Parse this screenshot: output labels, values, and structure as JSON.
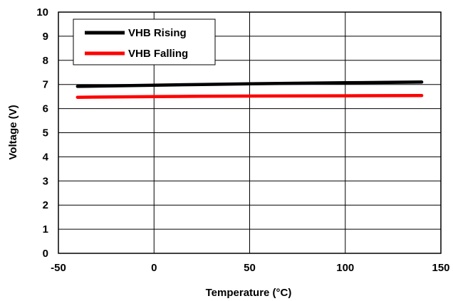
{
  "chart_data": {
    "type": "line",
    "xlabel": "Temperature (°C)",
    "ylabel": "Voltage (V)",
    "xlim": [
      -50,
      150
    ],
    "ylim": [
      0,
      10
    ],
    "x_ticks": [
      "-50",
      "0",
      "50",
      "100",
      "150"
    ],
    "y_ticks": [
      "0",
      "1",
      "2",
      "3",
      "4",
      "5",
      "6",
      "7",
      "8",
      "9",
      "10"
    ],
    "grid": true,
    "legend_position": "top-left",
    "series": [
      {
        "name": "VHB Rising",
        "color": "#000000",
        "x": [
          -40,
          0,
          25,
          50,
          100,
          140
        ],
        "y": [
          6.92,
          6.97,
          7.0,
          7.03,
          7.07,
          7.1
        ]
      },
      {
        "name": "VHB Falling",
        "color": "#ff0000",
        "x": [
          -40,
          0,
          25,
          50,
          100,
          140
        ],
        "y": [
          6.47,
          6.5,
          6.51,
          6.52,
          6.53,
          6.54
        ]
      }
    ]
  }
}
